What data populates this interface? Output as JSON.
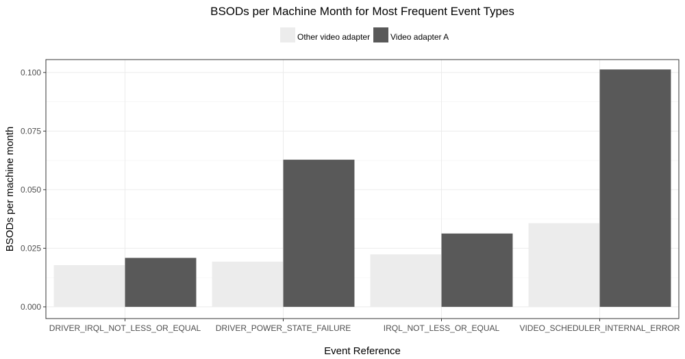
{
  "chart_data": {
    "type": "bar",
    "title": "BSODs per Machine Month for Most Frequent Event Types",
    "xlabel": "Event Reference",
    "ylabel": "BSODs per machine month",
    "categories": [
      "DRIVER_IRQL_NOT_LESS_OR_EQUAL",
      "DRIVER_POWER_STATE_FAILURE",
      "IRQL_NOT_LESS_OR_EQUAL",
      "VIDEO_SCHEDULER_INTERNAL_ERROR"
    ],
    "series": [
      {
        "name": "Other video adapter",
        "color": "#ececec",
        "values": [
          0.0178,
          0.0193,
          0.0224,
          0.0357
        ]
      },
      {
        "name": "Video adapter A",
        "color": "#595959",
        "values": [
          0.0209,
          0.0628,
          0.0313,
          0.1013
        ]
      }
    ],
    "ylim": [
      -0.005,
      0.1055
    ],
    "yticks": [
      "0.000",
      "0.025",
      "0.050",
      "0.075",
      "0.100"
    ],
    "grid": true,
    "legend_position": "top"
  }
}
